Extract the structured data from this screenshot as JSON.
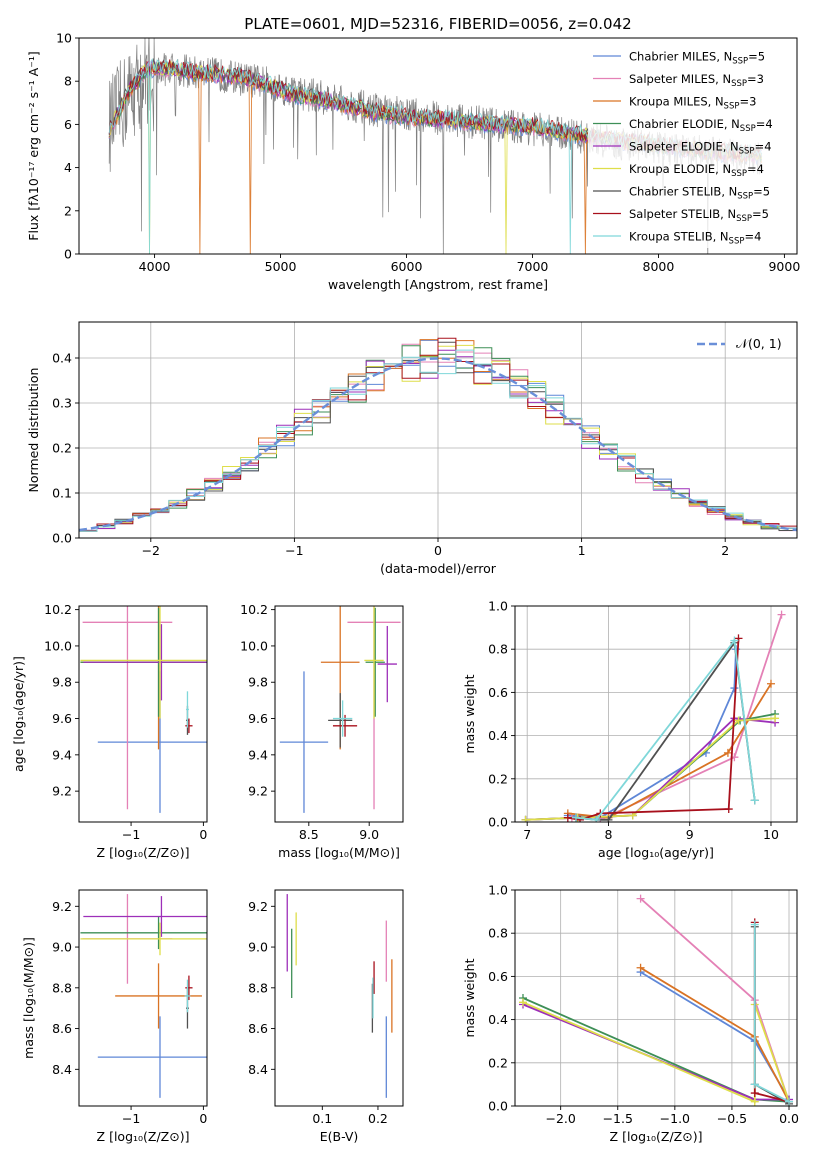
{
  "colors": {
    "Chabrier MILES": "#5f87d7",
    "Salpeter MILES": "#e481b6",
    "Kroupa MILES": "#d97324",
    "Chabrier ELODIE": "#3e8f57",
    "Salpeter ELODIE": "#9d2fb9",
    "Kroupa ELODIE": "#dede4a",
    "Chabrier STELIB": "#505050",
    "Salpeter STELIB": "#a8101c",
    "Kroupa STELIB": "#7fd7d9",
    "normal_curve": "#6a8fd8",
    "grid": "#b0b0b0"
  },
  "chart_data": [
    {
      "id": "spectrum",
      "type": "line",
      "title": "PLATE=0601, MJD=52316, FIBERID=0056, z=0.042",
      "xlabel": "wavelength [Angstrom, rest frame]",
      "ylabel": "Flux [fλ10⁻¹⁷ erg cm⁻² s⁻¹ A⁻¹]",
      "xlim": [
        3400,
        9100
      ],
      "ylim": [
        0,
        10
      ],
      "xticks": [
        "4000",
        "5000",
        "6000",
        "7000",
        "8000",
        "9000"
      ],
      "yticks": [
        "0",
        "2",
        "4",
        "6",
        "8",
        "10"
      ],
      "grid": false,
      "legend_position": "top-right",
      "legend": [
        "Chabrier MILES, N_SSP=5",
        "Salpeter MILES, N_SSP=3",
        "Kroupa MILES, N_SSP=3",
        "Chabrier ELODIE, N_SSP=4",
        "Salpeter ELODIE, N_SSP=4",
        "Kroupa ELODIE, N_SSP=4",
        "Chabrier STELIB, N_SSP=5",
        "Salpeter STELIB, N_SSP=5",
        "Kroupa STELIB, N_SSP=4"
      ],
      "data_continuum": [
        [
          3650,
          6.0
        ],
        [
          3800,
          7.4
        ],
        [
          3950,
          8.3
        ],
        [
          4100,
          8.6
        ],
        [
          4300,
          8.4
        ],
        [
          4500,
          8.3
        ],
        [
          4700,
          8.1
        ],
        [
          4900,
          7.9
        ],
        [
          5100,
          7.5
        ],
        [
          5300,
          7.3
        ],
        [
          5500,
          7.0
        ],
        [
          5800,
          6.6
        ],
        [
          6100,
          6.4
        ],
        [
          6400,
          6.2
        ],
        [
          6700,
          6.0
        ],
        [
          7000,
          5.8
        ],
        [
          7300,
          5.5
        ],
        [
          7600,
          5.2
        ],
        [
          7900,
          5.0
        ],
        [
          8200,
          4.8
        ],
        [
          8500,
          4.6
        ],
        [
          8800,
          4.4
        ]
      ],
      "model_continuum": [
        [
          3650,
          5.8
        ],
        [
          3800,
          7.6
        ],
        [
          3950,
          8.6
        ],
        [
          4100,
          8.6
        ],
        [
          4300,
          8.4
        ],
        [
          4500,
          8.3
        ],
        [
          4700,
          8.2
        ],
        [
          4900,
          7.8
        ],
        [
          5100,
          7.4
        ],
        [
          5300,
          7.2
        ],
        [
          5500,
          6.9
        ],
        [
          5800,
          6.5
        ],
        [
          6100,
          6.3
        ],
        [
          6400,
          6.2
        ],
        [
          6700,
          6.0
        ],
        [
          7000,
          5.9
        ],
        [
          7300,
          5.6
        ],
        [
          7600,
          5.3
        ],
        [
          7900,
          5.1
        ],
        [
          8200,
          4.9
        ],
        [
          8500,
          4.7
        ],
        [
          8800,
          4.6
        ]
      ]
    },
    {
      "id": "residuals",
      "type": "line",
      "xlabel": "(data-model)/error",
      "ylabel": "Normed distribution",
      "xlim": [
        -2.5,
        2.5
      ],
      "ylim": [
        0,
        0.48
      ],
      "xticks": [
        "−2",
        "−1",
        "0",
        "1",
        "2"
      ],
      "yticks": [
        "0.0",
        "0.1",
        "0.2",
        "0.3",
        "0.4"
      ],
      "grid": true,
      "legend_position": "top-right",
      "legend": [
        "𝒩(0, 1)"
      ],
      "bin_width": 0.125
    },
    {
      "id": "age-vs-Z",
      "type": "scatter",
      "xlabel": "Z [log₁₀(Z/Z⊙)]",
      "ylabel": "age  [log₁₀(age/yr)]",
      "xlim": [
        -1.72,
        0.05
      ],
      "ylim": [
        9.03,
        10.22
      ],
      "xticks": [
        "−1",
        "0"
      ],
      "yticks": [
        "9.2",
        "9.4",
        "9.6",
        "9.8",
        "10.0",
        "10.2"
      ],
      "grid": false,
      "points": [
        {
          "name": "Chabrier MILES",
          "x": -0.6,
          "y": 9.47,
          "xerr": 0.86,
          "yerr": 0.39
        },
        {
          "name": "Salpeter MILES",
          "x": -1.05,
          "y": 10.13,
          "xerr": 0.62,
          "yerr": 1.03
        },
        {
          "name": "Kroupa MILES",
          "x": -0.62,
          "y": 9.91,
          "xerr": 1.08,
          "yerr": 0.48
        },
        {
          "name": "Chabrier ELODIE",
          "x": -0.62,
          "y": 9.91,
          "xerr": 1.08,
          "yerr": 0.3
        },
        {
          "name": "Salpeter ELODIE",
          "x": -0.58,
          "y": 9.91,
          "xerr": 1.08,
          "yerr": 0.21
        },
        {
          "name": "Kroupa ELODIE",
          "x": -0.6,
          "y": 9.92,
          "xerr": 1.1,
          "yerr": 0.32
        },
        {
          "name": "Chabrier STELIB",
          "x": -0.22,
          "y": 9.59,
          "xerr": 0.02,
          "yerr": 0.08
        },
        {
          "name": "Salpeter STELIB",
          "x": -0.2,
          "y": 9.56,
          "xerr": 0.05,
          "yerr": 0.04
        },
        {
          "name": "Kroupa STELIB",
          "x": -0.22,
          "y": 9.65,
          "xerr": 0.02,
          "yerr": 0.1
        }
      ]
    },
    {
      "id": "age-vs-mass",
      "type": "scatter",
      "xlabel": "mass [log₁₀(M/M⊙)]",
      "ylabel": "",
      "xlim": [
        8.22,
        9.28
      ],
      "ylim": [
        9.03,
        10.22
      ],
      "xticks": [
        "8.5",
        "9.0"
      ],
      "yticks": [
        "9.2",
        "9.4",
        "9.6",
        "9.8",
        "10.0",
        "10.2"
      ],
      "grid": false,
      "points": [
        {
          "name": "Chabrier MILES",
          "x": 8.46,
          "y": 9.47,
          "xerr": 0.2,
          "yerr": 0.39
        },
        {
          "name": "Salpeter MILES",
          "x": 9.04,
          "y": 10.13,
          "xerr": 0.22,
          "yerr": 1.03
        },
        {
          "name": "Kroupa MILES",
          "x": 8.76,
          "y": 9.91,
          "xerr": 0.16,
          "yerr": 0.48
        },
        {
          "name": "Chabrier ELODIE",
          "x": 9.05,
          "y": 9.91,
          "xerr": 0.08,
          "yerr": 0.3
        },
        {
          "name": "Salpeter ELODIE",
          "x": 9.15,
          "y": 9.9,
          "xerr": 0.08,
          "yerr": 0.21
        },
        {
          "name": "Kroupa ELODIE",
          "x": 9.04,
          "y": 9.92,
          "xerr": 0.08,
          "yerr": 0.32
        },
        {
          "name": "Chabrier STELIB",
          "x": 8.76,
          "y": 9.59,
          "xerr": 0.1,
          "yerr": 0.15
        },
        {
          "name": "Salpeter STELIB",
          "x": 8.8,
          "y": 9.56,
          "xerr": 0.1,
          "yerr": 0.06
        },
        {
          "name": "Kroupa STELIB",
          "x": 8.78,
          "y": 9.6,
          "xerr": 0.08,
          "yerr": 0.1
        }
      ]
    },
    {
      "id": "weight-vs-age",
      "type": "line",
      "xlabel": "age  [log₁₀(age/yr)]",
      "ylabel": "mass weight",
      "xlim": [
        6.85,
        10.32
      ],
      "ylim": [
        0,
        1
      ],
      "xticks": [
        "7",
        "8",
        "9",
        "10"
      ],
      "yticks": [
        "0.0",
        "0.2",
        "0.4",
        "0.6",
        "0.8",
        "1.0"
      ],
      "grid": true,
      "series": [
        {
          "name": "Chabrier MILES",
          "x": [
            7.5,
            7.9,
            9.2,
            9.55,
            9.57
          ],
          "y": [
            0.03,
            0.02,
            0.32,
            0.62,
            0.8
          ]
        },
        {
          "name": "Salpeter MILES",
          "x": [
            7.55,
            7.9,
            9.55,
            10.13
          ],
          "y": [
            0.02,
            0.01,
            0.3,
            0.96
          ]
        },
        {
          "name": "Kroupa MILES",
          "x": [
            7.5,
            8.0,
            9.47,
            10.0
          ],
          "y": [
            0.04,
            0.02,
            0.32,
            0.64
          ]
        },
        {
          "name": "Chabrier ELODIE",
          "x": [
            6.98,
            7.62,
            8.3,
            9.62,
            10.05
          ],
          "y": [
            0.01,
            0.02,
            0.03,
            0.47,
            0.5
          ]
        },
        {
          "name": "Salpeter ELODIE",
          "x": [
            6.98,
            7.62,
            8.3,
            9.55,
            10.05
          ],
          "y": [
            0.01,
            0.02,
            0.03,
            0.48,
            0.46
          ]
        },
        {
          "name": "Kroupa ELODIE",
          "x": [
            6.98,
            7.62,
            8.3,
            9.6,
            10.05
          ],
          "y": [
            0.01,
            0.02,
            0.03,
            0.47,
            0.48
          ]
        },
        {
          "name": "Chabrier STELIB",
          "x": [
            7.6,
            7.85,
            8.0,
            9.55,
            9.8
          ],
          "y": [
            0.02,
            0.01,
            0.01,
            0.83,
            0.1
          ]
        },
        {
          "name": "Salpeter STELIB",
          "x": [
            7.5,
            7.65,
            7.9,
            9.48,
            9.6
          ],
          "y": [
            0.02,
            0.01,
            0.04,
            0.06,
            0.85
          ]
        },
        {
          "name": "Kroupa STELIB",
          "x": [
            7.6,
            7.85,
            9.55,
            9.8
          ],
          "y": [
            0.02,
            0.01,
            0.84,
            0.1
          ]
        }
      ]
    },
    {
      "id": "mass-vs-Z",
      "type": "scatter",
      "xlabel": "Z [log₁₀(Z/Z⊙)]",
      "ylabel": "mass [log₁₀(M/M⊙)]",
      "xlim": [
        -1.72,
        0.05
      ],
      "ylim": [
        8.22,
        9.28
      ],
      "xticks": [
        "−1",
        "0"
      ],
      "yticks": [
        "8.4",
        "8.6",
        "8.8",
        "9.0",
        "9.2"
      ],
      "grid": false,
      "points": [
        {
          "name": "Chabrier MILES",
          "x": -0.6,
          "y": 8.46,
          "xerr": 0.86,
          "yerr": 0.2
        },
        {
          "name": "Salpeter MILES",
          "x": -1.05,
          "y": 9.04,
          "xerr": 0.62,
          "yerr": 0.22
        },
        {
          "name": "Kroupa MILES",
          "x": -0.62,
          "y": 8.76,
          "xerr": 0.6,
          "yerr": 0.16
        },
        {
          "name": "Chabrier ELODIE",
          "x": -0.62,
          "y": 9.07,
          "xerr": 1.08,
          "yerr": 0.08
        },
        {
          "name": "Salpeter ELODIE",
          "x": -0.58,
          "y": 9.15,
          "xerr": 1.08,
          "yerr": 0.1
        },
        {
          "name": "Kroupa ELODIE",
          "x": -0.6,
          "y": 9.04,
          "xerr": 1.1,
          "yerr": 0.08
        },
        {
          "name": "Chabrier STELIB",
          "x": -0.22,
          "y": 8.7,
          "xerr": 0.02,
          "yerr": 0.1
        },
        {
          "name": "Salpeter STELIB",
          "x": -0.2,
          "y": 8.8,
          "xerr": 0.05,
          "yerr": 0.06
        },
        {
          "name": "Kroupa STELIB",
          "x": -0.22,
          "y": 8.76,
          "xerr": 0.04,
          "yerr": 0.08
        }
      ]
    },
    {
      "id": "mass-vs-EBV",
      "type": "scatter",
      "xlabel": "E(B-V)",
      "ylabel": "",
      "xlim": [
        0.015,
        0.245
      ],
      "ylim": [
        8.22,
        9.28
      ],
      "xticks": [
        "0.1",
        "0.2"
      ],
      "yticks": [
        "8.4",
        "8.6",
        "8.8",
        "9.0",
        "9.2"
      ],
      "grid": false,
      "points": [
        {
          "name": "Chabrier MILES",
          "x": 0.215,
          "y": 8.46,
          "xerr": 0,
          "yerr": 0.2
        },
        {
          "name": "Salpeter MILES",
          "x": 0.215,
          "y": 8.98,
          "xerr": 0,
          "yerr": 0.15
        },
        {
          "name": "Kroupa MILES",
          "x": 0.225,
          "y": 8.76,
          "xerr": 0,
          "yerr": 0.18
        },
        {
          "name": "Chabrier ELODIE",
          "x": 0.045,
          "y": 8.92,
          "xerr": 0,
          "yerr": 0.17
        },
        {
          "name": "Salpeter ELODIE",
          "x": 0.037,
          "y": 9.07,
          "xerr": 0,
          "yerr": 0.19
        },
        {
          "name": "Kroupa ELODIE",
          "x": 0.053,
          "y": 9.04,
          "xerr": 0,
          "yerr": 0.13
        },
        {
          "name": "Chabrier STELIB",
          "x": 0.19,
          "y": 8.7,
          "xerr": 0,
          "yerr": 0.12
        },
        {
          "name": "Salpeter STELIB",
          "x": 0.193,
          "y": 8.85,
          "xerr": 0,
          "yerr": 0.08
        },
        {
          "name": "Kroupa STELIB",
          "x": 0.191,
          "y": 8.75,
          "xerr": 0,
          "yerr": 0.1
        }
      ]
    },
    {
      "id": "weight-vs-Z",
      "type": "line",
      "xlabel": "Z [log₁₀(Z/Z⊙)]",
      "ylabel": "mass weight",
      "xlim": [
        -2.4,
        0.07
      ],
      "ylim": [
        0,
        1
      ],
      "xticks": [
        "−2.0",
        "−1.5",
        "−1.0",
        "−0.5",
        "0.0"
      ],
      "yticks": [
        "0.0",
        "0.2",
        "0.4",
        "0.6",
        "0.8",
        "1.0"
      ],
      "grid": true,
      "series": [
        {
          "name": "Chabrier MILES",
          "x": [
            -1.3,
            -0.3,
            0.0
          ],
          "y": [
            0.62,
            0.3,
            0.03
          ]
        },
        {
          "name": "Salpeter MILES",
          "x": [
            -1.3,
            -0.3,
            0.0
          ],
          "y": [
            0.96,
            0.49,
            0.02
          ]
        },
        {
          "name": "Kroupa MILES",
          "x": [
            -1.3,
            -0.3,
            0.0
          ],
          "y": [
            0.64,
            0.32,
            0.02
          ]
        },
        {
          "name": "Chabrier ELODIE",
          "x": [
            -2.33,
            -0.3,
            0.0
          ],
          "y": [
            0.5,
            0.03,
            0.02
          ]
        },
        {
          "name": "Salpeter ELODIE",
          "x": [
            -2.33,
            -0.3,
            0.0
          ],
          "y": [
            0.47,
            0.03,
            0.03
          ]
        },
        {
          "name": "Kroupa ELODIE",
          "x": [
            -2.33,
            -0.3,
            -0.3,
            0.0
          ],
          "y": [
            0.48,
            0.02,
            0.47,
            0.02
          ]
        },
        {
          "name": "Chabrier STELIB",
          "x": [
            -0.3,
            -0.3,
            0.0
          ],
          "y": [
            0.83,
            0.1,
            0.01
          ]
        },
        {
          "name": "Salpeter STELIB",
          "x": [
            -0.3,
            -0.3,
            0.0
          ],
          "y": [
            0.85,
            0.06,
            0.02
          ]
        },
        {
          "name": "Kroupa STELIB",
          "x": [
            -0.3,
            -0.3,
            0.0
          ],
          "y": [
            0.84,
            0.1,
            0.02
          ]
        }
      ]
    }
  ]
}
